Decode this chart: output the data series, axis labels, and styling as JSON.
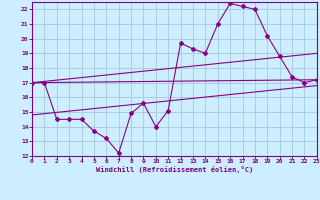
{
  "title": "",
  "xlabel": "Windchill (Refroidissement éolien,°C)",
  "ylabel": "",
  "bg_color": "#cceeff",
  "grid_color": "#aaccdd",
  "line_color": "#880088",
  "xmin": 0,
  "xmax": 23,
  "ymin": 12,
  "ymax": 22.5,
  "yticks": [
    12,
    13,
    14,
    15,
    16,
    17,
    18,
    19,
    20,
    21,
    22
  ],
  "xticks": [
    0,
    1,
    2,
    3,
    4,
    5,
    6,
    7,
    8,
    9,
    10,
    11,
    12,
    13,
    14,
    15,
    16,
    17,
    18,
    19,
    20,
    21,
    22,
    23
  ],
  "series1_x": [
    0,
    1,
    2,
    3,
    4,
    5,
    6,
    7,
    8,
    9,
    10,
    11,
    12,
    13,
    14,
    15,
    16,
    17,
    18,
    19,
    20,
    21,
    22,
    23
  ],
  "series1_y": [
    17.0,
    17.0,
    14.5,
    14.5,
    14.5,
    13.7,
    13.2,
    12.2,
    14.9,
    15.6,
    14.0,
    15.1,
    19.7,
    19.3,
    19.0,
    21.0,
    22.4,
    22.2,
    22.0,
    20.2,
    18.8,
    17.4,
    17.0,
    17.2
  ],
  "series2_x": [
    0,
    23
  ],
  "series2_y": [
    17.0,
    17.2
  ],
  "series3_x": [
    0,
    23
  ],
  "series3_y": [
    14.8,
    16.8
  ],
  "series4_x": [
    0,
    23
  ],
  "series4_y": [
    17.0,
    19.0
  ]
}
